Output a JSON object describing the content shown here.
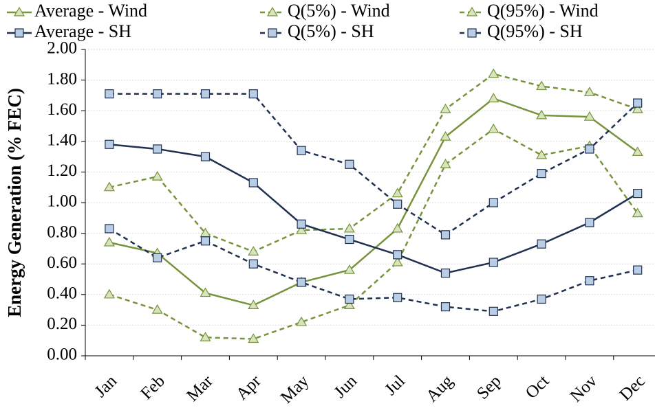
{
  "chart_data": {
    "type": "line",
    "y_label": "Energy Generation (% FEC)",
    "categories": [
      "Jan",
      "Feb",
      "Mar",
      "Apr",
      "May",
      "Jun",
      "Jul",
      "Aug",
      "Sep",
      "Oct",
      "Nov",
      "Dec"
    ],
    "series": [
      {
        "name": "Average - Wind",
        "color": "#77933c",
        "marker_fill": "#d7e4bd",
        "marker": "triangle",
        "dash": false,
        "values": [
          0.74,
          0.67,
          0.41,
          0.33,
          0.48,
          0.56,
          0.83,
          1.43,
          1.68,
          1.57,
          1.56,
          1.33
        ]
      },
      {
        "name": "Q(5%) - Wind",
        "color": "#77933c",
        "marker_fill": "#d7e4bd",
        "marker": "triangle",
        "dash": true,
        "values": [
          0.4,
          0.3,
          0.12,
          0.11,
          0.22,
          0.33,
          0.61,
          1.25,
          1.48,
          1.31,
          1.37,
          0.93
        ]
      },
      {
        "name": "Q(95%) - Wind",
        "color": "#77933c",
        "marker_fill": "#d7e4bd",
        "marker": "triangle",
        "dash": true,
        "values": [
          1.1,
          1.17,
          0.8,
          0.68,
          0.82,
          0.83,
          1.06,
          1.61,
          1.84,
          1.76,
          1.72,
          1.61
        ]
      },
      {
        "name": "Average - SH",
        "color": "#1f3050",
        "marker_fill": "#b9cde5",
        "marker": "square",
        "dash": false,
        "values": [
          1.38,
          1.35,
          1.3,
          1.13,
          0.86,
          0.76,
          0.66,
          0.54,
          0.61,
          0.73,
          0.87,
          1.06
        ]
      },
      {
        "name": "Q(5%) - SH",
        "color": "#1f3050",
        "marker_fill": "#b9cde5",
        "marker": "square",
        "dash": true,
        "values": [
          0.83,
          0.64,
          0.75,
          0.6,
          0.48,
          0.37,
          0.38,
          0.32,
          0.29,
          0.37,
          0.49,
          0.56
        ]
      },
      {
        "name": "Q(95%) - SH",
        "color": "#1f3050",
        "marker_fill": "#b9cde5",
        "marker": "square",
        "dash": true,
        "values": [
          1.71,
          1.71,
          1.71,
          1.71,
          1.34,
          1.25,
          0.99,
          0.79,
          1.0,
          1.19,
          1.35,
          1.65
        ]
      }
    ],
    "ylim": [
      0,
      2
    ],
    "yticks": [
      {
        "value": 0,
        "label": "0.00"
      },
      {
        "value": 0.2,
        "label": "0.20"
      },
      {
        "value": 0.4,
        "label": "0.40"
      },
      {
        "value": 0.6,
        "label": "0.60"
      },
      {
        "value": 0.8,
        "label": "0.80"
      },
      {
        "value": 1,
        "label": "1.00"
      },
      {
        "value": 1.2,
        "label": "1.20"
      },
      {
        "value": 1.4,
        "label": "1.40"
      },
      {
        "value": 1.6,
        "label": "1.60"
      },
      {
        "value": 1.8,
        "label": "1.80"
      },
      {
        "value": 2,
        "label": "2.00"
      }
    ],
    "grid": true,
    "legend": "top"
  }
}
